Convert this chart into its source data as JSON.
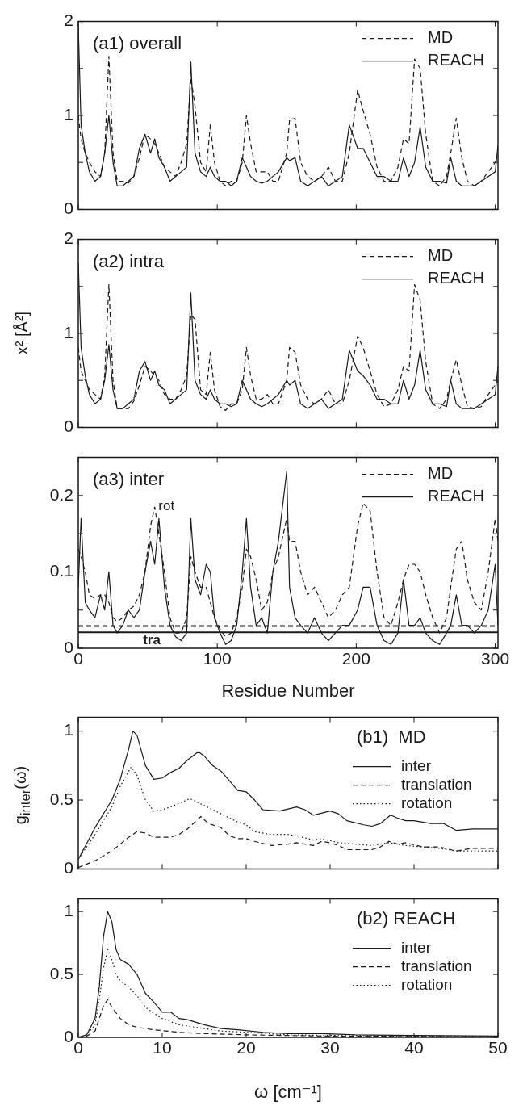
{
  "chart_data": [
    {
      "type": "line",
      "title": "(a1) overall",
      "legend": "top right",
      "tick_labels": "y",
      "xlim": [
        0,
        302
      ],
      "xticks": [
        0,
        100,
        200,
        300
      ],
      "ylim": [
        0,
        2
      ],
      "yticks": [
        0,
        {
          "value": 0.5,
          "label": null
        },
        1,
        {
          "value": 1.5,
          "label": null
        },
        2
      ],
      "x": [
        0,
        2,
        5,
        8,
        12,
        16,
        19,
        22,
        25,
        28,
        32,
        36,
        40,
        44,
        48,
        52,
        55,
        58,
        62,
        66,
        70,
        74,
        78,
        81,
        84,
        88,
        92,
        95,
        98,
        102,
        106,
        110,
        114,
        118,
        121,
        124,
        128,
        132,
        136,
        140,
        144,
        150,
        152,
        156,
        160,
        165,
        170,
        175,
        180,
        185,
        190,
        195,
        201,
        205,
        210,
        215,
        220,
        225,
        230,
        234,
        238,
        242,
        246,
        250,
        255,
        260,
        265,
        268,
        272,
        276,
        280,
        285,
        290,
        295,
        300,
        302
      ],
      "series": [
        {
          "name": "MD",
          "color": "#1a1a1a",
          "line_style": "dashed",
          "values": [
            1.0,
            0.75,
            0.6,
            0.5,
            0.4,
            0.35,
            0.6,
            1.63,
            0.6,
            0.3,
            0.3,
            0.28,
            0.35,
            0.55,
            0.8,
            0.75,
            0.7,
            0.6,
            0.45,
            0.4,
            0.35,
            0.5,
            0.7,
            1.4,
            1.1,
            0.5,
            0.4,
            0.9,
            0.5,
            0.3,
            0.25,
            0.3,
            0.3,
            0.5,
            1.0,
            0.7,
            0.4,
            0.4,
            0.4,
            0.3,
            0.3,
            0.6,
            0.95,
            0.97,
            0.5,
            0.35,
            0.3,
            0.35,
            0.45,
            0.3,
            0.3,
            0.6,
            1.27,
            1.05,
            0.8,
            0.45,
            0.3,
            0.3,
            0.45,
            0.75,
            0.7,
            1.6,
            1.5,
            0.8,
            0.3,
            0.25,
            0.35,
            0.6,
            0.97,
            0.55,
            0.3,
            0.25,
            0.3,
            0.4,
            0.5,
            0.55
          ]
        },
        {
          "name": "REACH",
          "color": "#1a1a1a",
          "line_style": "solid",
          "values": [
            1.95,
            0.9,
            0.6,
            0.4,
            0.3,
            0.35,
            0.6,
            1.0,
            0.5,
            0.25,
            0.25,
            0.3,
            0.35,
            0.65,
            0.8,
            0.6,
            0.75,
            0.55,
            0.45,
            0.3,
            0.35,
            0.4,
            0.45,
            1.57,
            0.6,
            0.4,
            0.35,
            0.45,
            0.35,
            0.3,
            0.3,
            0.25,
            0.3,
            0.55,
            0.45,
            0.35,
            0.3,
            0.28,
            0.3,
            0.35,
            0.4,
            0.55,
            0.52,
            0.55,
            0.3,
            0.25,
            0.3,
            0.35,
            0.25,
            0.3,
            0.35,
            0.9,
            0.65,
            0.65,
            0.5,
            0.35,
            0.35,
            0.3,
            0.3,
            0.55,
            0.35,
            0.5,
            0.88,
            0.45,
            0.3,
            0.3,
            0.28,
            0.55,
            0.3,
            0.25,
            0.25,
            0.25,
            0.3,
            0.35,
            0.4,
            0.68
          ]
        }
      ]
    },
    {
      "type": "line",
      "title": "(a2) intra",
      "ylabel": "x² [Å²]",
      "legend": "top right",
      "tick_labels": "y",
      "xlim": [
        0,
        302
      ],
      "xticks": [
        0,
        100,
        200,
        300
      ],
      "ylim": [
        0,
        2
      ],
      "yticks": [
        0,
        {
          "value": 0.5,
          "label": null
        },
        1,
        {
          "value": 1.5,
          "label": null
        },
        2
      ],
      "x": [
        0,
        2,
        5,
        8,
        12,
        16,
        19,
        22,
        25,
        28,
        32,
        36,
        40,
        44,
        48,
        52,
        55,
        58,
        62,
        66,
        70,
        74,
        78,
        81,
        84,
        88,
        92,
        95,
        98,
        102,
        106,
        110,
        114,
        118,
        121,
        124,
        128,
        132,
        136,
        140,
        144,
        150,
        152,
        156,
        160,
        165,
        170,
        175,
        180,
        185,
        190,
        195,
        201,
        205,
        210,
        215,
        220,
        225,
        230,
        234,
        238,
        242,
        246,
        250,
        255,
        260,
        265,
        268,
        272,
        276,
        280,
        285,
        290,
        295,
        300,
        302
      ],
      "series": [
        {
          "name": "MD",
          "color": "#1a1a1a",
          "line_style": "dashed",
          "values": [
            0.85,
            0.6,
            0.5,
            0.4,
            0.35,
            0.3,
            0.55,
            1.52,
            0.5,
            0.2,
            0.2,
            0.2,
            0.28,
            0.45,
            0.65,
            0.6,
            0.55,
            0.5,
            0.35,
            0.3,
            0.3,
            0.4,
            0.55,
            1.2,
            1.15,
            0.4,
            0.35,
            0.8,
            0.4,
            0.22,
            0.18,
            0.25,
            0.25,
            0.4,
            0.85,
            0.55,
            0.3,
            0.3,
            0.35,
            0.25,
            0.25,
            0.5,
            0.85,
            0.8,
            0.45,
            0.3,
            0.25,
            0.3,
            0.4,
            0.25,
            0.25,
            0.5,
            0.97,
            0.85,
            0.6,
            0.35,
            0.22,
            0.25,
            0.4,
            0.65,
            0.6,
            1.52,
            1.35,
            0.7,
            0.25,
            0.2,
            0.3,
            0.5,
            0.72,
            0.45,
            0.22,
            0.2,
            0.22,
            0.35,
            0.45,
            0.5
          ]
        },
        {
          "name": "REACH",
          "color": "#1a1a1a",
          "line_style": "solid",
          "values": [
            1.75,
            0.85,
            0.55,
            0.35,
            0.25,
            0.3,
            0.5,
            0.88,
            0.4,
            0.2,
            0.2,
            0.25,
            0.3,
            0.6,
            0.7,
            0.5,
            0.6,
            0.45,
            0.4,
            0.25,
            0.3,
            0.35,
            0.4,
            1.43,
            0.5,
            0.35,
            0.3,
            0.4,
            0.3,
            0.25,
            0.25,
            0.22,
            0.25,
            0.5,
            0.4,
            0.3,
            0.25,
            0.22,
            0.25,
            0.3,
            0.35,
            0.5,
            0.45,
            0.5,
            0.25,
            0.2,
            0.25,
            0.3,
            0.2,
            0.25,
            0.3,
            0.82,
            0.6,
            0.55,
            0.45,
            0.3,
            0.3,
            0.25,
            0.25,
            0.5,
            0.3,
            0.45,
            0.82,
            0.4,
            0.25,
            0.25,
            0.22,
            0.5,
            0.25,
            0.2,
            0.2,
            0.2,
            0.25,
            0.3,
            0.35,
            0.65
          ]
        }
      ]
    },
    {
      "type": "line",
      "title": "(a3) inter",
      "xlabel": "Residue Number",
      "legend": "top right",
      "xlim": [
        0,
        302
      ],
      "xticks": [
        0,
        100,
        200,
        300
      ],
      "ylim": [
        0,
        0.25
      ],
      "yticks": [
        0,
        {
          "value": 0.05,
          "label": null
        },
        0.1,
        {
          "value": 0.15,
          "label": null
        },
        0.2
      ],
      "ref_lines": [
        {
          "axis": "y",
          "value": 0.029,
          "line_style": "dashed",
          "color": "#1a1a1a"
        },
        {
          "axis": "y",
          "value": 0.021,
          "line_style": "solid",
          "color": "#1a1a1a",
          "label": "tra"
        }
      ],
      "annotations": [
        "rot"
      ],
      "x": [
        0,
        2,
        5,
        8,
        12,
        16,
        19,
        22,
        25,
        28,
        32,
        36,
        40,
        44,
        48,
        52,
        55,
        58,
        62,
        66,
        70,
        74,
        78,
        81,
        84,
        88,
        92,
        95,
        98,
        102,
        106,
        110,
        114,
        118,
        121,
        124,
        128,
        132,
        136,
        140,
        144,
        150,
        152,
        156,
        160,
        165,
        170,
        175,
        180,
        185,
        190,
        195,
        201,
        205,
        210,
        215,
        220,
        225,
        230,
        234,
        238,
        242,
        246,
        250,
        255,
        260,
        265,
        268,
        272,
        276,
        280,
        285,
        290,
        295,
        300,
        302
      ],
      "series": [
        {
          "name": "MD",
          "color": "#1a1a1a",
          "line_style": "dashed",
          "values": [
            0.13,
            0.12,
            0.1,
            0.07,
            0.065,
            0.07,
            0.07,
            0.06,
            0.04,
            0.035,
            0.04,
            0.05,
            0.055,
            0.07,
            0.1,
            0.16,
            0.185,
            0.15,
            0.1,
            0.04,
            0.02,
            0.02,
            0.04,
            0.12,
            0.1,
            0.08,
            0.08,
            0.06,
            0.04,
            0.025,
            0.015,
            0.02,
            0.04,
            0.08,
            0.13,
            0.12,
            0.09,
            0.05,
            0.06,
            0.1,
            0.12,
            0.17,
            0.14,
            0.14,
            0.1,
            0.07,
            0.08,
            0.06,
            0.04,
            0.05,
            0.07,
            0.08,
            0.16,
            0.19,
            0.18,
            0.1,
            0.04,
            0.03,
            0.06,
            0.09,
            0.11,
            0.11,
            0.1,
            0.07,
            0.04,
            0.02,
            0.04,
            0.08,
            0.13,
            0.14,
            0.09,
            0.06,
            0.05,
            0.1,
            0.17,
            0.14
          ]
        },
        {
          "name": "REACH",
          "color": "#1a1a1a",
          "line_style": "solid",
          "values": [
            0.08,
            0.17,
            0.06,
            0.05,
            0.04,
            0.07,
            0.05,
            0.1,
            0.03,
            0.02,
            0.03,
            0.05,
            0.04,
            0.05,
            0.1,
            0.14,
            0.11,
            0.17,
            0.08,
            0.03,
            0.015,
            0.01,
            0.02,
            0.17,
            0.09,
            0.07,
            0.11,
            0.1,
            0.04,
            0.02,
            0.005,
            0.01,
            0.03,
            0.1,
            0.17,
            0.08,
            0.03,
            0.04,
            0.02,
            0.1,
            0.14,
            0.232,
            0.08,
            0.04,
            0.03,
            0.02,
            0.04,
            0.02,
            0.01,
            0.02,
            0.03,
            0.03,
            0.05,
            0.08,
            0.08,
            0.03,
            0.01,
            0.005,
            0.02,
            0.09,
            0.03,
            0.03,
            0.04,
            0.02,
            0.01,
            0.005,
            0.02,
            0.03,
            0.07,
            0.03,
            0.03,
            0.02,
            0.03,
            0.05,
            0.11,
            0.03
          ]
        }
      ]
    },
    {
      "type": "line",
      "title": "(b1)  MD",
      "ylabel": "g$_{inter}$(ω)",
      "legend": "right",
      "tick_labels": "y",
      "xlim": [
        0,
        50
      ],
      "xticks": [
        0,
        10,
        20,
        30,
        40,
        50
      ],
      "ylim": [
        0,
        1.1
      ],
      "yticks": [
        0,
        0.5,
        1
      ],
      "series": [
        {
          "name": "inter",
          "color": "#1a1a1a",
          "line_style": "solid",
          "x": [
            0,
            2,
            4,
            5,
            6,
            6.5,
            7,
            8,
            9,
            10,
            11,
            12,
            13,
            14.3,
            15,
            16,
            17,
            18,
            19,
            20,
            21,
            22,
            24,
            26,
            27,
            28,
            30,
            31,
            32,
            34,
            35,
            36,
            37.2,
            38,
            39,
            40,
            42,
            43.5,
            45,
            47,
            50
          ],
          "values": [
            0.07,
            0.3,
            0.5,
            0.65,
            0.87,
            1.0,
            0.97,
            0.75,
            0.65,
            0.66,
            0.7,
            0.73,
            0.79,
            0.85,
            0.82,
            0.75,
            0.71,
            0.64,
            0.57,
            0.56,
            0.5,
            0.43,
            0.42,
            0.45,
            0.43,
            0.39,
            0.42,
            0.4,
            0.35,
            0.32,
            0.31,
            0.33,
            0.39,
            0.37,
            0.35,
            0.35,
            0.33,
            0.33,
            0.28,
            0.29,
            0.29
          ]
        },
        {
          "name": "translation",
          "color": "#1a1a1a",
          "line_style": "dashed",
          "x": [
            0,
            2,
            4,
            6,
            7,
            8,
            9,
            11,
            12,
            13,
            14.6,
            15.5,
            17,
            18,
            19,
            20,
            21,
            23,
            25,
            26,
            27,
            28,
            29,
            30,
            31,
            32,
            35,
            36,
            37,
            38,
            39,
            41,
            43,
            45,
            47,
            50
          ],
          "values": [
            0.01,
            0.06,
            0.13,
            0.23,
            0.27,
            0.26,
            0.23,
            0.23,
            0.25,
            0.29,
            0.38,
            0.33,
            0.3,
            0.24,
            0.22,
            0.22,
            0.2,
            0.17,
            0.18,
            0.19,
            0.18,
            0.17,
            0.2,
            0.19,
            0.17,
            0.14,
            0.14,
            0.16,
            0.2,
            0.18,
            0.19,
            0.16,
            0.16,
            0.13,
            0.15,
            0.15
          ]
        },
        {
          "name": "rotation",
          "color": "#1a1a1a",
          "line_style": "dotted",
          "x": [
            0,
            2,
            4,
            5,
            6.3,
            7,
            8,
            9,
            10,
            11,
            13.3,
            15,
            17,
            19,
            20,
            21,
            23,
            25,
            26,
            28,
            29,
            31,
            33,
            35,
            37,
            39,
            41,
            43,
            45,
            47,
            50
          ],
          "values": [
            0.07,
            0.25,
            0.45,
            0.6,
            0.74,
            0.68,
            0.5,
            0.42,
            0.43,
            0.45,
            0.51,
            0.46,
            0.4,
            0.34,
            0.32,
            0.27,
            0.25,
            0.25,
            0.24,
            0.21,
            0.22,
            0.19,
            0.18,
            0.17,
            0.19,
            0.17,
            0.16,
            0.15,
            0.13,
            0.13,
            0.13
          ]
        }
      ]
    },
    {
      "type": "line",
      "title": "(b2) REACH",
      "xlabel": "ω [cm⁻¹]",
      "legend": "right",
      "xlim": [
        0,
        50
      ],
      "xticks": [
        0,
        10,
        20,
        30,
        40,
        50
      ],
      "ylim": [
        0,
        1.1
      ],
      "yticks": [
        0,
        0.5,
        1
      ],
      "series": [
        {
          "name": "inter",
          "color": "#1a1a1a",
          "line_style": "solid",
          "x": [
            0,
            1,
            2,
            2.5,
            3,
            3.5,
            4,
            4.5,
            5,
            6,
            7,
            8,
            9,
            10,
            11,
            12,
            13,
            15,
            17,
            19,
            22,
            25,
            29,
            33,
            40,
            50
          ],
          "values": [
            0,
            0.02,
            0.15,
            0.4,
            0.8,
            1.0,
            0.92,
            0.7,
            0.62,
            0.58,
            0.5,
            0.35,
            0.28,
            0.2,
            0.2,
            0.15,
            0.14,
            0.1,
            0.07,
            0.06,
            0.04,
            0.03,
            0.03,
            0.02,
            0.015,
            0.01
          ]
        },
        {
          "name": "translation",
          "color": "#1a1a1a",
          "line_style": "dashed",
          "x": [
            0,
            1,
            2,
            2.5,
            3,
            3.5,
            4,
            5,
            6,
            7,
            9,
            12,
            15,
            20,
            30,
            50
          ],
          "values": [
            0,
            0.01,
            0.05,
            0.15,
            0.25,
            0.3,
            0.24,
            0.15,
            0.1,
            0.08,
            0.06,
            0.04,
            0.03,
            0.02,
            0.01,
            0.005
          ]
        },
        {
          "name": "rotation",
          "color": "#1a1a1a",
          "line_style": "dotted",
          "x": [
            0,
            1,
            2,
            2.5,
            3,
            3.5,
            4,
            4.5,
            5,
            6,
            7,
            8,
            9,
            10,
            12,
            14,
            17,
            20,
            25,
            30,
            40,
            50
          ],
          "values": [
            0,
            0.02,
            0.1,
            0.3,
            0.55,
            0.7,
            0.62,
            0.5,
            0.45,
            0.4,
            0.33,
            0.24,
            0.19,
            0.15,
            0.1,
            0.08,
            0.05,
            0.04,
            0.02,
            0.015,
            0.01,
            0.005
          ]
        }
      ]
    }
  ]
}
